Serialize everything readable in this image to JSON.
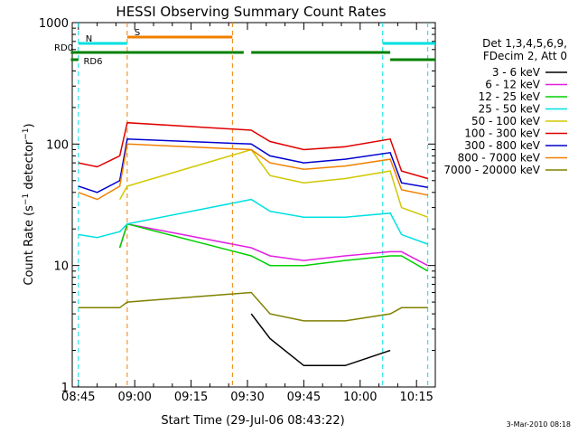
{
  "chart_data": {
    "type": "line",
    "title": "HESSI Observing Summary Count Rates",
    "xlabel": "Start Time (29-Jul-06 08:43:22)",
    "ylabel": "Count Rate (s-1 detector-1)",
    "yscale": "log",
    "xlim": [
      "08:43:22",
      "10:20:00"
    ],
    "ylim": [
      1,
      1000
    ],
    "x_ticks": [
      "08:45",
      "09:00",
      "09:15",
      "09:30",
      "09:45",
      "10:00",
      "10:15"
    ],
    "y_ticks": [
      "1",
      "10",
      "100",
      "1000"
    ],
    "legend": {
      "placement": "right",
      "header": [
        "Det 1,3,4,5,6,9,",
        "FDecim 2, Att 0"
      ]
    },
    "x": [
      "08:45",
      "08:50",
      "08:56",
      "08:58",
      "09:31",
      "09:36",
      "09:45",
      "09:56",
      "10:08",
      "10:11",
      "10:18"
    ],
    "series": [
      {
        "name": "3 - 6 keV",
        "color": "#000000",
        "values": [
          null,
          null,
          null,
          null,
          4.0,
          2.5,
          1.5,
          1.5,
          2.0,
          null,
          null
        ]
      },
      {
        "name": "6 - 12 keV",
        "color": "#e020e0",
        "values": [
          null,
          null,
          14,
          22,
          14,
          12,
          11,
          12,
          13,
          13,
          10
        ]
      },
      {
        "name": "12 - 25 keV",
        "color": "#00d000",
        "values": [
          null,
          null,
          14,
          22,
          12,
          10,
          10,
          11,
          12,
          12,
          9
        ]
      },
      {
        "name": "25 - 50 keV",
        "color": "#00e0e0",
        "values": [
          18,
          17,
          19,
          22,
          35,
          28,
          25,
          25,
          27,
          18,
          15
        ]
      },
      {
        "name": "50 - 100 keV",
        "color": "#d0c800",
        "values": [
          null,
          null,
          35,
          45,
          90,
          55,
          48,
          52,
          60,
          30,
          25
        ]
      },
      {
        "name": "100 - 300 keV",
        "color": "#e00000",
        "values": [
          70,
          65,
          80,
          150,
          130,
          105,
          90,
          95,
          110,
          60,
          52
        ]
      },
      {
        "name": "300 - 800 keV",
        "color": "#0000d0",
        "values": [
          45,
          40,
          50,
          110,
          100,
          80,
          70,
          75,
          85,
          48,
          44
        ]
      },
      {
        "name": "800 - 7000 keV",
        "color": "#f08000",
        "values": [
          40,
          35,
          45,
          100,
          90,
          70,
          62,
          66,
          75,
          42,
          38
        ]
      },
      {
        "name": "7000 - 20000 keV",
        "color": "#808000",
        "values": [
          4.5,
          4.5,
          4.5,
          5.0,
          6.0,
          4.0,
          3.5,
          3.5,
          4.0,
          4.5,
          4.5
        ]
      }
    ],
    "flags": [
      {
        "label": "S",
        "color": "#f08000",
        "from": "08:58",
        "to": "09:26"
      },
      {
        "label": "N",
        "color": "#00e0e0",
        "from": "08:45",
        "to": "08:58"
      },
      {
        "label": "N",
        "color": "#00e0e0",
        "from": "10:06",
        "to": "10:20"
      },
      {
        "label": "RD0",
        "color": "#008000",
        "from": "08:43",
        "to": "09:26"
      },
      {
        "label": "RD0",
        "color": "#008000",
        "from": "09:26",
        "to": "09:29"
      },
      {
        "label": "RD0",
        "color": "#008000",
        "from": "09:31",
        "to": "10:08"
      },
      {
        "label": "RD6",
        "color": "#008000",
        "from": "08:43",
        "to": "08:45"
      },
      {
        "label": "RD6",
        "color": "#008000",
        "from": "10:08",
        "to": "10:20"
      }
    ],
    "vlines": [
      {
        "time": "08:45",
        "color": "#00e0e0"
      },
      {
        "time": "08:58",
        "color": "#f08000"
      },
      {
        "time": "09:26",
        "color": "#f08000"
      },
      {
        "time": "10:06",
        "color": "#00e0e0"
      },
      {
        "time": "10:18",
        "color": "#00e0e0"
      }
    ],
    "flag_labels": {
      "S": "S",
      "N": "N",
      "RD0": "RD0",
      "RD6": "RD6"
    },
    "footer": "3-Mar-2010 08:18"
  }
}
